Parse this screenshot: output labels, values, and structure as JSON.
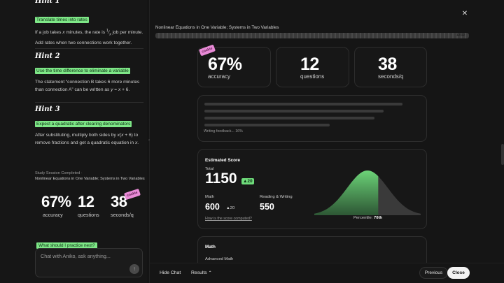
{
  "left": {
    "hint1": {
      "highlight": "Translate times into rates",
      "text_html": "If a job takes <i>x</i> minutes, the rate is <sup>1</sup>&frasl;<sub><i>x</i></sub> job per minute. Add rates when two connections work together."
    },
    "hint2": {
      "title": "Hint 2",
      "highlight": "Use the time difference to eliminate a variable",
      "text_html": "The statement “connection B takes 6 more minutes than connection A” can be written as <i>y</i> = <i>x</i> + 6."
    },
    "hint3": {
      "title": "Hint 3",
      "highlight": "Expect a quadratic after clearing denominators",
      "text_html": "After substituting, multiply both sides by <i>x</i>(<i>x</i> + 6) to remove fractions and get a quadratic equation in <i>x</i>."
    },
    "session": {
      "label": "Study Session Completed",
      "topic": "Nonlinear Equations in One Variable; Systems in Two Variables",
      "accuracy": "67%",
      "accuracy_label": "accuracy",
      "questions": "12",
      "questions_label": "questions",
      "seconds": "38",
      "seconds_label": "seconds/q",
      "sticker": "cookie"
    },
    "practice_question": "What should I practice next?",
    "chat_placeholder": "Chat with Aniko, ask anything..."
  },
  "right": {
    "title": "Nonlinear Equations in One Variable; Systems in Two Variables",
    "progress_count": "12/12",
    "progress_fraction": 1.0,
    "stats": {
      "accuracy": "67%",
      "accuracy_label": "accuracy",
      "questions": "12",
      "questions_label": "questions",
      "seconds": "38",
      "seconds_label": "seconds/q",
      "sticker": "cookie"
    },
    "feedback_label": "Writing feedback... 16%",
    "estimated": {
      "title": "Estimated Score",
      "total_label": "Total",
      "total": "1150",
      "total_delta": "▲20",
      "math_label": "Math",
      "math": "600",
      "math_delta": "▲20",
      "rw_label": "Reading & Writing",
      "rw": "550",
      "link": "How is the score computed?",
      "percentile_label": "Percentile:",
      "percentile": "70th",
      "percentile_value": 70
    },
    "math_section": {
      "title": "Math",
      "sub": "Advanced Math"
    },
    "bottom": {
      "hide_chat": "Hide Chat",
      "results": "Results",
      "previous": "Previous",
      "close": "Close"
    },
    "colors": {
      "accent_green": "#6fdc7b",
      "sticker_pink": "#e88ad6"
    }
  }
}
